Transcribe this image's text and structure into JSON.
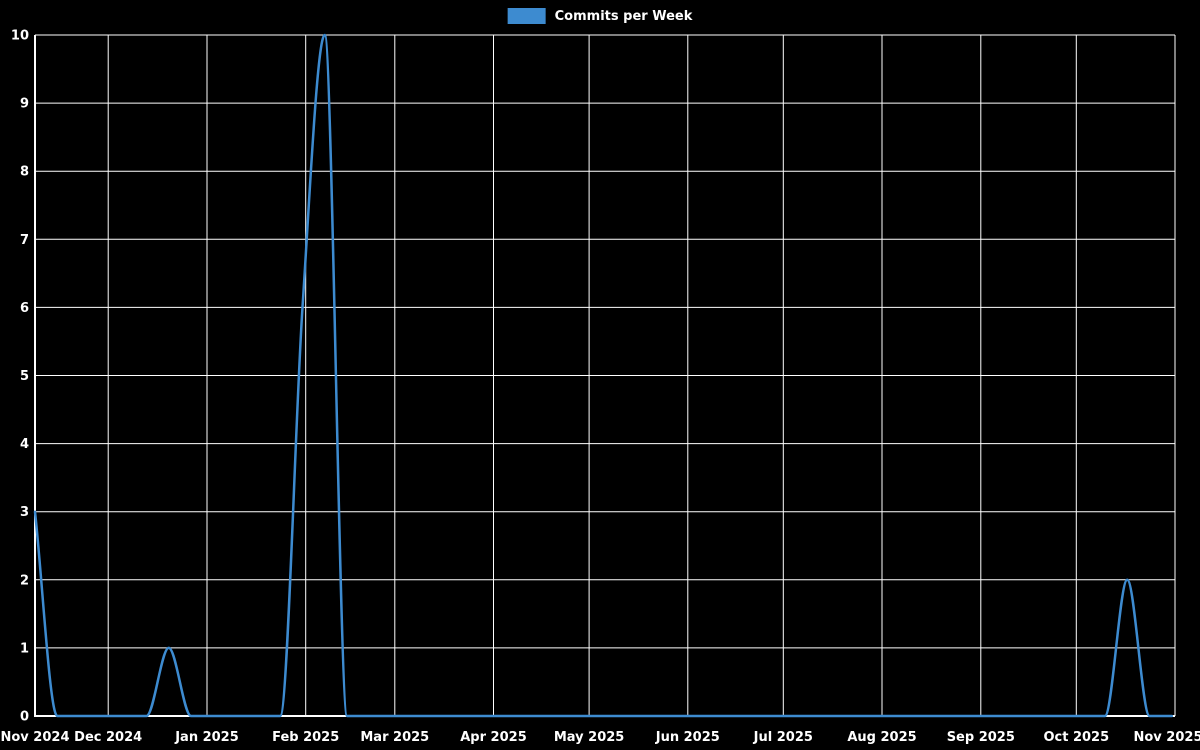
{
  "legend": {
    "label": "Commits per Week"
  },
  "colors": {
    "background": "#000000",
    "line": "#3d8bd0",
    "grid": "#ffffff",
    "axis": "#ffffff",
    "text": "#ffffff"
  },
  "chart_data": {
    "type": "line",
    "title": "Commits per Week",
    "xlabel": "",
    "ylabel": "",
    "grid": true,
    "legend_position": "top-center",
    "legend_entries": [
      "Commits per Week"
    ],
    "ylim": [
      0,
      10
    ],
    "y_ticks": [
      0,
      1,
      2,
      3,
      4,
      5,
      6,
      7,
      8,
      9,
      10
    ],
    "x_ticks": [
      "Nov 2024",
      "Dec 2024",
      "Jan 2025",
      "Feb 2025",
      "Mar 2025",
      "Apr 2025",
      "May 2025",
      "Jun 2025",
      "Jul 2025",
      "Aug 2025",
      "Sep 2025",
      "Oct 2025",
      "Nov 2025"
    ],
    "x_tick_days": [
      0,
      23,
      54,
      85,
      113,
      144,
      174,
      205,
      235,
      266,
      297,
      327,
      358
    ],
    "x_domain_days": [
      0,
      358
    ],
    "week_interval_days": 7,
    "series": [
      {
        "name": "Commits per Week",
        "values": [
          3,
          0,
          0,
          0,
          0,
          0,
          1,
          0,
          0,
          0,
          0,
          0,
          6,
          10,
          0,
          0,
          0,
          0,
          0,
          0,
          0,
          0,
          0,
          0,
          0,
          0,
          0,
          0,
          0,
          0,
          0,
          0,
          0,
          0,
          0,
          0,
          0,
          0,
          0,
          0,
          0,
          0,
          0,
          0,
          0,
          0,
          0,
          0,
          0,
          2,
          0,
          0
        ]
      }
    ]
  }
}
